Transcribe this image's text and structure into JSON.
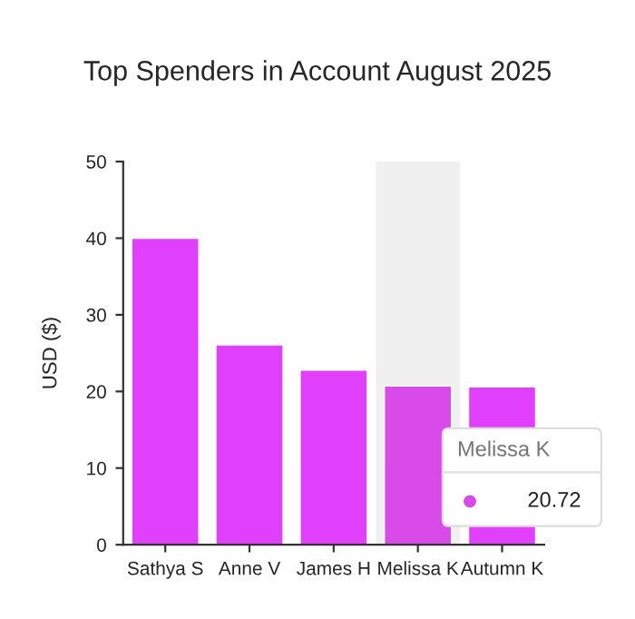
{
  "chart_data": {
    "type": "bar",
    "title": "Top Spenders in Account August 2025",
    "ylabel": "USD ($)",
    "categories": [
      "Sathya S",
      "Anne V",
      "James H",
      "Melissa K",
      "Autumn K"
    ],
    "values": [
      40.0,
      26.1,
      22.8,
      20.72,
      20.6
    ],
    "colors": [
      "#e040fb",
      "#e040fb",
      "#e040fb",
      "#d84be8",
      "#e040fb"
    ],
    "ylim": [
      0,
      50
    ],
    "yticks": [
      0,
      10,
      20,
      30,
      40,
      50
    ],
    "grid": false,
    "bands": [
      {
        "axis": "x",
        "from": "Melissa K",
        "to": "Melissa K",
        "color": "#f0f0f0"
      }
    ],
    "annotations": [
      "Melissa K",
      "20.72"
    ]
  }
}
